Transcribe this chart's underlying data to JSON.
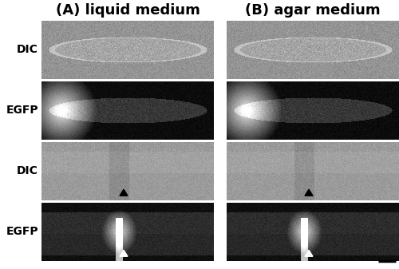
{
  "title_A": "(A) liquid medium",
  "title_B": "(B) agar medium",
  "label_row1": "DIC",
  "label_row2": "EGFP",
  "label_row3": "DIC",
  "label_row4": "EGFP",
  "bg_color": "#ffffff",
  "title_fontsize": 13,
  "label_fontsize": 10,
  "fig_width": 5.0,
  "fig_height": 3.37,
  "dpi": 100
}
